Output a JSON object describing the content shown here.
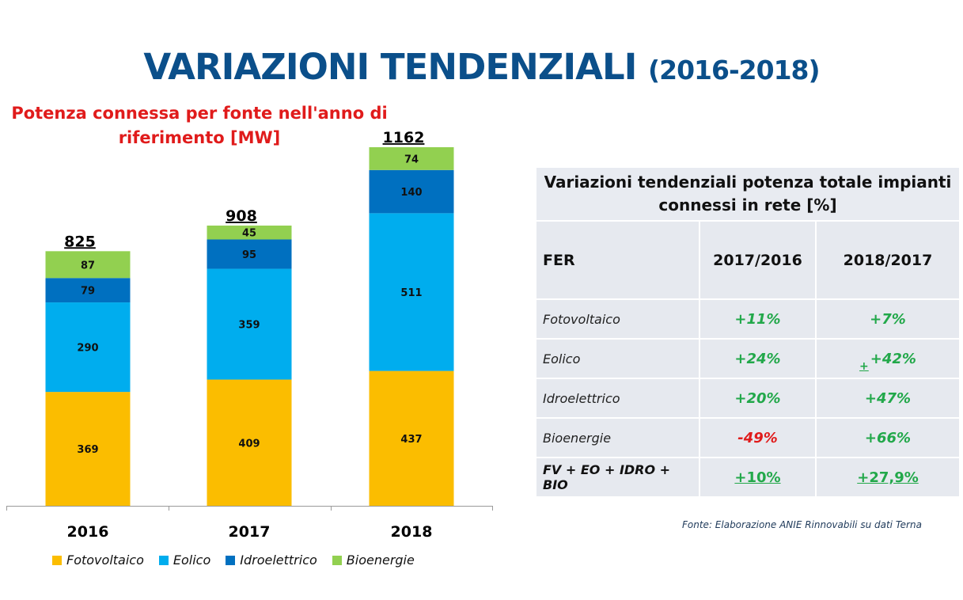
{
  "header": {
    "title_main": "VARIAZIONI TENDENZIALI",
    "title_years": "(2016-2018)"
  },
  "chart_data": {
    "type": "bar",
    "stacked": true,
    "title": "Potenza connessa per fonte nell'anno di riferimento [MW]",
    "categories": [
      "2016",
      "2017",
      "2018"
    ],
    "series": [
      {
        "name": "Fotovoltaico",
        "color": "#fbbd00",
        "values": [
          369,
          409,
          437
        ]
      },
      {
        "name": "Eolico",
        "color": "#00adee",
        "values": [
          290,
          359,
          511
        ]
      },
      {
        "name": "Idroelettrico",
        "color": "#0070c0",
        "values": [
          79,
          95,
          140
        ]
      },
      {
        "name": "Bioenergie",
        "color": "#92d050",
        "values": [
          87,
          45,
          74
        ]
      }
    ],
    "totals": [
      "825",
      "908",
      "1162"
    ],
    "grid": false,
    "legend_position": "bottom"
  },
  "table": {
    "title": "Variazioni tendenziali potenza totale impianti connessi in rete [%]",
    "headers": [
      "FER",
      "2017/2016",
      "2018/2017"
    ],
    "rows": [
      {
        "label": "Fotovoltaico",
        "v1": "+11%",
        "v2": "+7%"
      },
      {
        "label": "Eolico",
        "v1": "+24%",
        "v2": "+42%",
        "v2_prefix": "+"
      },
      {
        "label": "Idroelettrico",
        "v1": "+20%",
        "v2": "+47%"
      },
      {
        "label": "Bioenergie",
        "v1": "-49%",
        "v2": "+66%"
      },
      {
        "label": "FV + EO + IDRO + BIO",
        "v1": "+10%",
        "v2": "+27,9%"
      }
    ],
    "colors": {
      "positive": "#22a84a",
      "negative": "#e01b1b"
    }
  },
  "source": "Fonte: Elaborazione ANIE Rinnovabili su dati Terna"
}
